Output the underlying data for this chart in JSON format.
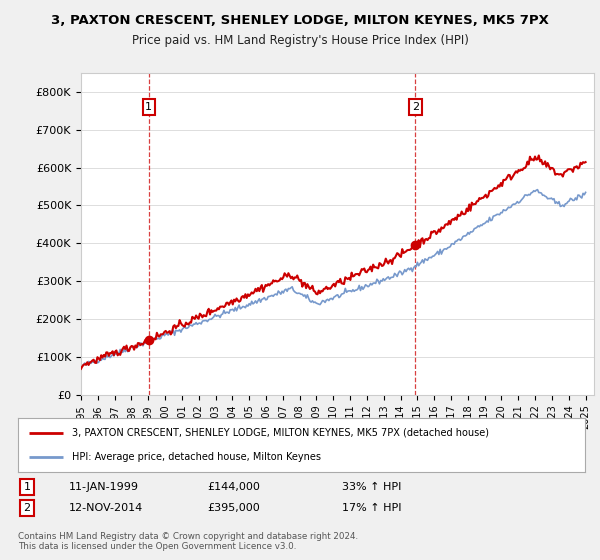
{
  "title_line1": "3, PAXTON CRESCENT, SHENLEY LODGE, MILTON KEYNES, MK5 7PX",
  "title_line2": "Price paid vs. HM Land Registry's House Price Index (HPI)",
  "legend_line1": "3, PAXTON CRESCENT, SHENLEY LODGE, MILTON KEYNES, MK5 7PX (detached house)",
  "legend_line2": "HPI: Average price, detached house, Milton Keynes",
  "annotation1": {
    "label": "1",
    "date": "11-JAN-1999",
    "price": "£144,000",
    "hpi": "33% ↑ HPI",
    "x_year": 1999.03,
    "y_val": 144000
  },
  "annotation2": {
    "label": "2",
    "date": "12-NOV-2014",
    "price": "£395,000",
    "hpi": "17% ↑ HPI",
    "x_year": 2014.87,
    "y_val": 395000
  },
  "footer": "Contains HM Land Registry data © Crown copyright and database right 2024.\nThis data is licensed under the Open Government Licence v3.0.",
  "price_color": "#cc0000",
  "hpi_color": "#7799cc",
  "background_color": "#f0f0f0",
  "plot_bg_color": "#ffffff",
  "ylim": [
    0,
    850000
  ],
  "yticks": [
    0,
    100000,
    200000,
    300000,
    400000,
    500000,
    600000,
    700000,
    800000
  ],
  "ytick_labels": [
    "£0",
    "£100K",
    "£200K",
    "£300K",
    "£400K",
    "£500K",
    "£600K",
    "£700K",
    "£800K"
  ],
  "xlim_start": 1995.0,
  "xlim_end": 2025.5,
  "xtick_years": [
    1995,
    1996,
    1997,
    1998,
    1999,
    2000,
    2001,
    2002,
    2003,
    2004,
    2005,
    2006,
    2007,
    2008,
    2009,
    2010,
    2011,
    2012,
    2013,
    2014,
    2015,
    2016,
    2017,
    2018,
    2019,
    2020,
    2021,
    2022,
    2023,
    2024,
    2025
  ]
}
